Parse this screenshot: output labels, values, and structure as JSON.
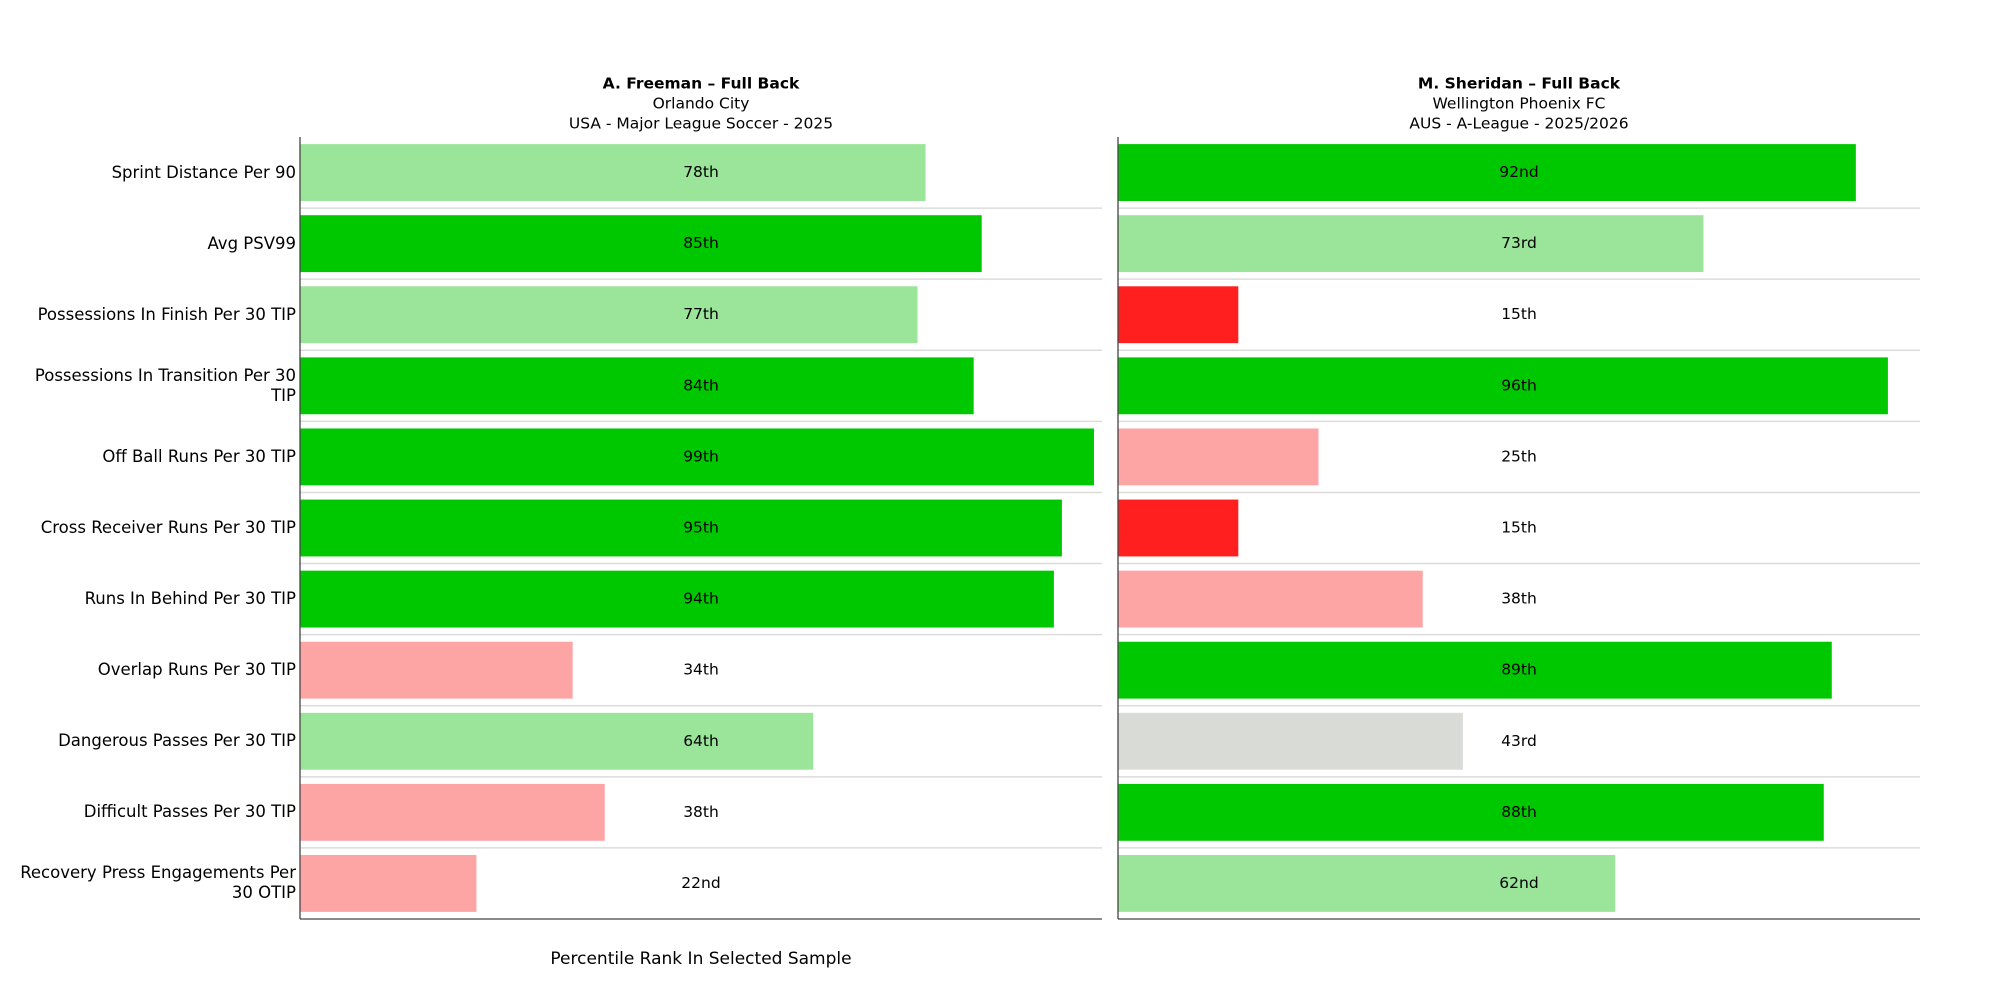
{
  "chart_data": [
    {
      "type": "bar",
      "orientation": "horizontal",
      "title": "A. Freeman – Full Back",
      "subtitle": "Orlando City",
      "description": "USA - Major League Soccer - 2025",
      "xlabel": "Percentile Rank In Selected Sample",
      "categories": [
        "Sprint Distance Per 90",
        "Avg PSV99",
        "Possessions In Finish Per 30 TIP",
        "Possessions In Transition Per 30 TIP",
        "Off Ball Runs Per 30 TIP",
        "Cross Receiver Runs Per 30 TIP",
        "Runs In Behind Per 30 TIP",
        "Overlap Runs Per 30 TIP",
        "Dangerous Passes Per 30 TIP",
        "Difficult Passes Per 30 TIP",
        "Recovery Press Engagements Per 30 OTIP"
      ],
      "values": [
        78,
        85,
        77,
        84,
        99,
        95,
        94,
        34,
        64,
        38,
        22
      ],
      "value_labels": [
        "78th",
        "85th",
        "77th",
        "84th",
        "99th",
        "95th",
        "94th",
        "34th",
        "64th",
        "38th",
        "22nd"
      ],
      "colors": [
        "#9ae59a",
        "#00c800",
        "#9ae59a",
        "#00c800",
        "#00c800",
        "#00c800",
        "#00c800",
        "#fda5a5",
        "#9ae59a",
        "#fda5a5",
        "#fda5a5"
      ],
      "xlim": [
        0,
        100
      ],
      "grid": true
    },
    {
      "type": "bar",
      "orientation": "horizontal",
      "title": "M. Sheridan – Full Back",
      "subtitle": "Wellington Phoenix FC",
      "description": "AUS - A-League - 2025/2026",
      "values": [
        92,
        73,
        15,
        96,
        25,
        15,
        38,
        89,
        43,
        88,
        62
      ],
      "value_labels": [
        "92nd",
        "73rd",
        "15th",
        "96th",
        "25th",
        "15th",
        "38th",
        "89th",
        "43rd",
        "88th",
        "62nd"
      ],
      "colors": [
        "#00c800",
        "#9ae59a",
        "#ff1f1f",
        "#00c800",
        "#fda5a5",
        "#ff1f1f",
        "#fda5a5",
        "#00c800",
        "#d9dbd6",
        "#00c800",
        "#9ae59a"
      ],
      "xlim": [
        0,
        100
      ],
      "grid": true
    }
  ]
}
